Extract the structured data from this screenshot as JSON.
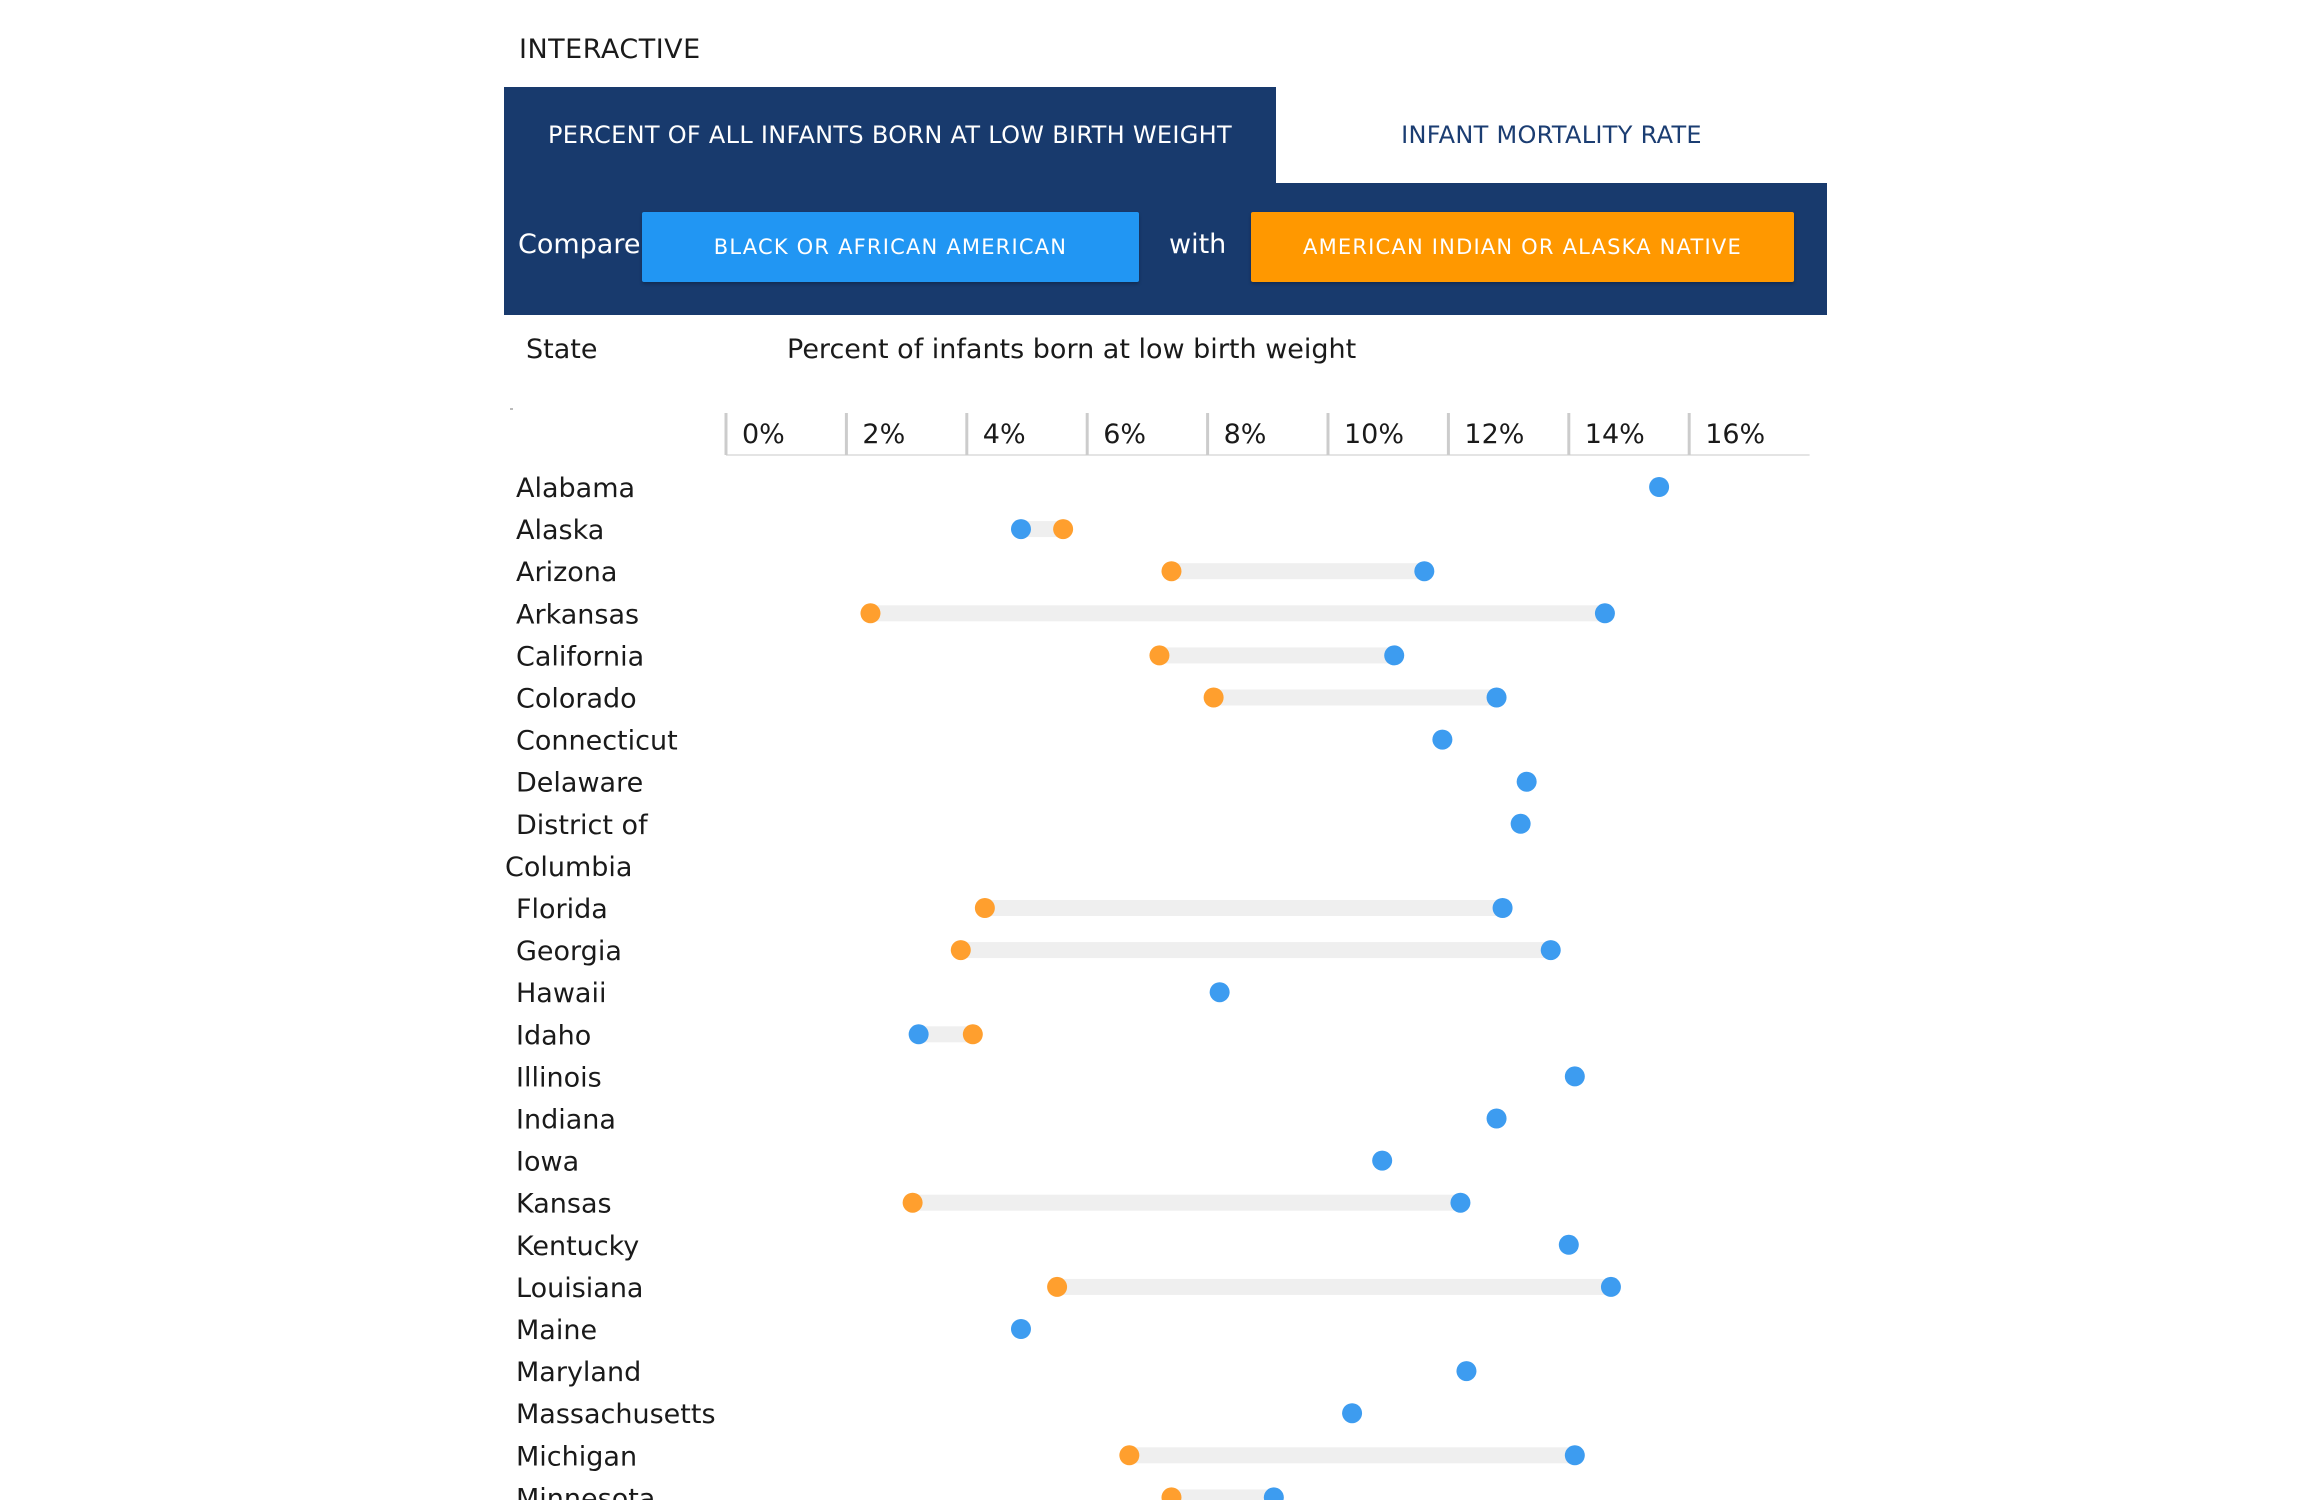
{
  "section_label": "INTERACTIVE",
  "tabs": {
    "active": "PERCENT OF ALL INFANTS BORN AT LOW BIRTH WEIGHT",
    "inactive": "INFANT MORTALITY RATE"
  },
  "compare": {
    "compare_label": "Compare",
    "with_label": "with",
    "group_a": "BLACK OR AFRICAN AMERICAN",
    "group_b": "AMERICAN INDIAN OR ALASKA NATIVE"
  },
  "headers": {
    "state": "State",
    "metric": "Percent of infants born at low birth weight"
  },
  "colors": {
    "group_a": "#3d9cf0",
    "group_b": "#ff9f2e",
    "connector": "#efefef",
    "header_bg": "#183a6d"
  },
  "chart_data": {
    "type": "dumbbell",
    "xlabel": "Percent of infants born at low birth weight",
    "ylabel": "State",
    "xlim": [
      0,
      18
    ],
    "x_ticks": [
      "0%",
      "2%",
      "4%",
      "6%",
      "8%",
      "10%",
      "12%",
      "14%",
      "16%"
    ],
    "series": [
      {
        "name": "BLACK OR AFRICAN AMERICAN",
        "color": "#3d9cf0"
      },
      {
        "name": "AMERICAN INDIAN OR ALASKA NATIVE",
        "color": "#ff9f2e"
      }
    ],
    "rows": [
      {
        "state": "Alabama",
        "a": 15.5,
        "b": null
      },
      {
        "state": "Alaska",
        "a": 4.9,
        "b": 5.6
      },
      {
        "state": "Arizona",
        "a": 11.6,
        "b": 7.4
      },
      {
        "state": "Arkansas",
        "a": 14.6,
        "b": 2.4
      },
      {
        "state": "California",
        "a": 11.1,
        "b": 7.2
      },
      {
        "state": "Colorado",
        "a": 12.8,
        "b": 8.1
      },
      {
        "state": "Connecticut",
        "a": 11.9,
        "b": null
      },
      {
        "state": "Delaware",
        "a": 13.3,
        "b": null
      },
      {
        "state": "District of Columbia",
        "a": 13.2,
        "b": null
      },
      {
        "state": "Florida",
        "a": 12.9,
        "b": 4.3
      },
      {
        "state": "Georgia",
        "a": 13.7,
        "b": 3.9
      },
      {
        "state": "Hawaii",
        "a": 8.2,
        "b": null
      },
      {
        "state": "Idaho",
        "a": 3.2,
        "b": 4.1
      },
      {
        "state": "Illinois",
        "a": 14.1,
        "b": null
      },
      {
        "state": "Indiana",
        "a": 12.8,
        "b": null
      },
      {
        "state": "Iowa",
        "a": 10.9,
        "b": null
      },
      {
        "state": "Kansas",
        "a": 12.2,
        "b": 3.1
      },
      {
        "state": "Kentucky",
        "a": 14.0,
        "b": null
      },
      {
        "state": "Louisiana",
        "a": 14.7,
        "b": 5.5
      },
      {
        "state": "Maine",
        "a": 4.9,
        "b": null
      },
      {
        "state": "Maryland",
        "a": 12.3,
        "b": null
      },
      {
        "state": "Massachusetts",
        "a": 10.4,
        "b": null
      },
      {
        "state": "Michigan",
        "a": 14.1,
        "b": 6.7
      },
      {
        "state": "Minnesota",
        "a": 9.1,
        "b": 7.4
      }
    ]
  }
}
